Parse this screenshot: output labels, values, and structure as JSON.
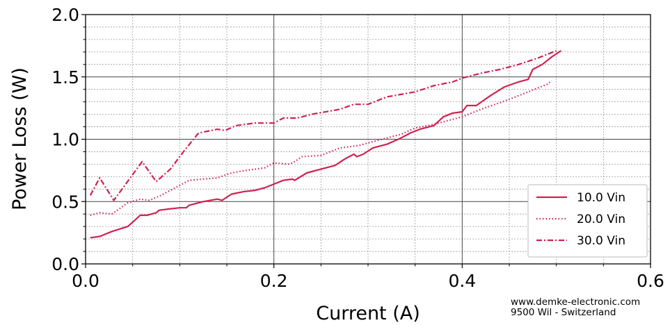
{
  "chart_data": {
    "type": "line",
    "title": "",
    "xlabel": "Current (A)",
    "ylabel": "Power Loss (W)",
    "xlim": [
      0,
      0.6
    ],
    "ylim": [
      0,
      2.0
    ],
    "xticks": [
      "0.0",
      "0.2",
      "0.4",
      "0.6"
    ],
    "yticks": [
      "0.0",
      "0.5",
      "1.0",
      "1.5",
      "2.0"
    ],
    "grid": "major and minor",
    "legend_position": "lower right",
    "color": "#d0204f",
    "series": [
      {
        "name": "10.0 Vin",
        "style": "solid",
        "x": [
          0.005,
          0.015,
          0.028,
          0.045,
          0.058,
          0.065,
          0.075,
          0.078,
          0.088,
          0.1,
          0.107,
          0.11,
          0.125,
          0.14,
          0.145,
          0.155,
          0.168,
          0.18,
          0.19,
          0.2,
          0.21,
          0.22,
          0.222,
          0.235,
          0.25,
          0.265,
          0.275,
          0.285,
          0.288,
          0.295,
          0.305,
          0.32,
          0.335,
          0.345,
          0.355,
          0.37,
          0.38,
          0.39,
          0.4,
          0.405,
          0.415,
          0.43,
          0.445,
          0.46,
          0.47,
          0.475,
          0.485,
          0.495,
          0.505
        ],
        "y": [
          0.21,
          0.22,
          0.26,
          0.3,
          0.39,
          0.39,
          0.41,
          0.43,
          0.44,
          0.45,
          0.45,
          0.47,
          0.5,
          0.52,
          0.51,
          0.56,
          0.58,
          0.59,
          0.61,
          0.64,
          0.67,
          0.68,
          0.67,
          0.73,
          0.76,
          0.79,
          0.84,
          0.88,
          0.86,
          0.88,
          0.93,
          0.96,
          1.01,
          1.05,
          1.08,
          1.11,
          1.18,
          1.21,
          1.22,
          1.27,
          1.27,
          1.35,
          1.42,
          1.46,
          1.48,
          1.56,
          1.6,
          1.66,
          1.71
        ]
      },
      {
        "name": "20.0 Vin",
        "style": "dotted",
        "x": [
          0.005,
          0.015,
          0.028,
          0.045,
          0.058,
          0.068,
          0.08,
          0.095,
          0.11,
          0.14,
          0.155,
          0.17,
          0.19,
          0.2,
          0.215,
          0.22,
          0.23,
          0.25,
          0.27,
          0.29,
          0.31,
          0.335,
          0.35,
          0.37,
          0.385,
          0.4,
          0.42,
          0.45,
          0.47,
          0.49,
          0.495
        ],
        "y": [
          0.39,
          0.41,
          0.4,
          0.49,
          0.52,
          0.51,
          0.55,
          0.61,
          0.67,
          0.69,
          0.73,
          0.75,
          0.77,
          0.81,
          0.8,
          0.81,
          0.86,
          0.87,
          0.93,
          0.95,
          0.99,
          1.04,
          1.09,
          1.12,
          1.15,
          1.18,
          1.24,
          1.32,
          1.38,
          1.44,
          1.47
        ]
      },
      {
        "name": "30.0 Vin",
        "style": "dashdot",
        "x": [
          0.005,
          0.015,
          0.03,
          0.06,
          0.075,
          0.09,
          0.105,
          0.12,
          0.14,
          0.148,
          0.16,
          0.18,
          0.2,
          0.21,
          0.225,
          0.24,
          0.27,
          0.285,
          0.3,
          0.32,
          0.35,
          0.37,
          0.39,
          0.4,
          0.42,
          0.44,
          0.46,
          0.48,
          0.5
        ],
        "y": [
          0.55,
          0.69,
          0.51,
          0.82,
          0.66,
          0.76,
          0.91,
          1.05,
          1.08,
          1.07,
          1.11,
          1.13,
          1.13,
          1.17,
          1.17,
          1.2,
          1.24,
          1.28,
          1.28,
          1.34,
          1.38,
          1.43,
          1.46,
          1.49,
          1.53,
          1.56,
          1.6,
          1.65,
          1.71
        ]
      }
    ]
  },
  "footer": {
    "line1": "www.demke-electronic.com",
    "line2": "9500 Wil - Switzerland"
  }
}
